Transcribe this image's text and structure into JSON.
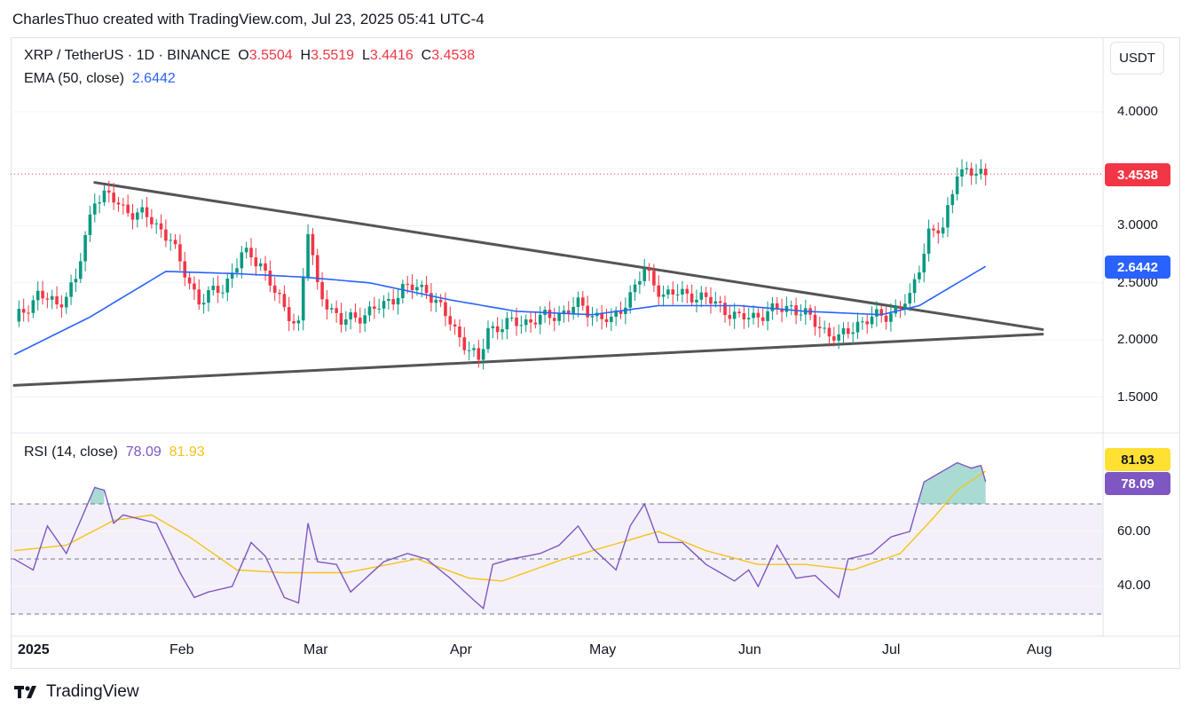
{
  "header": {
    "attribution": "CharlesThuo created with TradingView.com, Jul 23, 2025 05:41 UTC-4"
  },
  "legend": {
    "symbol": "XRP / TetherUS · 1D · BINANCE",
    "o_label": "O",
    "o_value": "3.5504",
    "h_label": "H",
    "h_value": "3.5519",
    "l_label": "L",
    "l_value": "3.4416",
    "c_label": "C",
    "c_value": "3.4538",
    "ema_label": "EMA (50, close)",
    "ema_value": "2.6442",
    "rsi_label": "RSI (14, close)",
    "rsi_value": "78.09",
    "rsi_ma_value": "81.93"
  },
  "price_axis": {
    "unit": "USDT",
    "ticks": [
      "4.0000",
      "3.0000",
      "2.5000",
      "2.0000",
      "1.5000"
    ],
    "last_price_tag": "3.4538",
    "ema_tag": "2.6442"
  },
  "rsi_axis": {
    "ticks": [
      "60.00",
      "40.00"
    ],
    "rsi_tag": "78.09",
    "rsi_ma_tag": "81.93"
  },
  "time_axis": {
    "labels": [
      "2025",
      "Feb",
      "Mar",
      "Apr",
      "May",
      "Jun",
      "Jul",
      "Aug"
    ]
  },
  "footer": {
    "brand": "TradingView"
  },
  "colors": {
    "up": "#089981",
    "down": "#f23645",
    "ema": "#2962ff",
    "rsi": "#7e57c2",
    "rsi_ma": "#f7c21b",
    "trendline": "#555555"
  },
  "chart_data": [
    {
      "type": "candlestick",
      "title": "XRP / TetherUS · 1D · BINANCE",
      "ylim": [
        1.3,
        4.4
      ],
      "x_range": [
        "2024-12-30",
        "2025-08-15"
      ],
      "anchors": [
        [
          "2024-12-30",
          2.16
        ],
        [
          "2025-01-04",
          2.4
        ],
        [
          "2025-01-08",
          2.3
        ],
        [
          "2025-01-12",
          2.52
        ],
        [
          "2025-01-16",
          3.25
        ],
        [
          "2025-01-18",
          3.28
        ],
        [
          "2025-01-22",
          3.15
        ],
        [
          "2025-01-26",
          3.1
        ],
        [
          "2025-02-01",
          2.9
        ],
        [
          "2025-02-03",
          2.65
        ],
        [
          "2025-02-07",
          2.35
        ],
        [
          "2025-02-12",
          2.45
        ],
        [
          "2025-02-16",
          2.75
        ],
        [
          "2025-02-20",
          2.68
        ],
        [
          "2025-02-25",
          2.25
        ],
        [
          "2025-02-28",
          2.15
        ],
        [
          "2025-03-02",
          2.95
        ],
        [
          "2025-03-04",
          2.45
        ],
        [
          "2025-03-09",
          2.15
        ],
        [
          "2025-03-12",
          2.2
        ],
        [
          "2025-03-18",
          2.3
        ],
        [
          "2025-03-22",
          2.45
        ],
        [
          "2025-03-27",
          2.45
        ],
        [
          "2025-04-01",
          2.15
        ],
        [
          "2025-04-07",
          1.8
        ],
        [
          "2025-04-09",
          2.1
        ],
        [
          "2025-04-15",
          2.15
        ],
        [
          "2025-04-22",
          2.2
        ],
        [
          "2025-04-28",
          2.3
        ],
        [
          "2025-05-05",
          2.15
        ],
        [
          "2025-05-09",
          2.4
        ],
        [
          "2025-05-12",
          2.6
        ],
        [
          "2025-05-16",
          2.4
        ],
        [
          "2025-05-22",
          2.4
        ],
        [
          "2025-05-28",
          2.3
        ],
        [
          "2025-06-01",
          2.18
        ],
        [
          "2025-06-08",
          2.25
        ],
        [
          "2025-06-12",
          2.3
        ],
        [
          "2025-06-17",
          2.15
        ],
        [
          "2025-06-22",
          2.0
        ],
        [
          "2025-06-26",
          2.15
        ],
        [
          "2025-07-02",
          2.22
        ],
        [
          "2025-07-07",
          2.35
        ],
        [
          "2025-07-11",
          2.95
        ],
        [
          "2025-07-14",
          2.95
        ],
        [
          "2025-07-17",
          3.5
        ],
        [
          "2025-07-20",
          3.45
        ],
        [
          "2025-07-23",
          3.4538
        ]
      ],
      "ema": {
        "name": "EMA (50, close)",
        "anchors": [
          [
            "2024-12-30",
            1.87
          ],
          [
            "2025-01-15",
            2.2
          ],
          [
            "2025-01-31",
            2.6
          ],
          [
            "2025-02-15",
            2.58
          ],
          [
            "2025-03-01",
            2.55
          ],
          [
            "2025-03-15",
            2.5
          ],
          [
            "2025-04-01",
            2.35
          ],
          [
            "2025-04-15",
            2.25
          ],
          [
            "2025-05-01",
            2.22
          ],
          [
            "2025-05-15",
            2.3
          ],
          [
            "2025-06-01",
            2.3
          ],
          [
            "2025-06-15",
            2.25
          ],
          [
            "2025-07-01",
            2.22
          ],
          [
            "2025-07-09",
            2.3
          ],
          [
            "2025-07-23",
            2.6442
          ]
        ]
      },
      "trendlines": [
        {
          "from": [
            "2025-01-16",
            3.38
          ],
          "to": [
            "2025-08-04",
            2.09
          ]
        },
        {
          "from": [
            "2024-12-30",
            1.6
          ],
          "to": [
            "2025-08-04",
            2.05
          ]
        }
      ]
    },
    {
      "type": "line",
      "title": "RSI (14, close)",
      "ylim": [
        28,
        92
      ],
      "bands": {
        "upper": 70,
        "middle": 50,
        "lower": 30
      },
      "series": [
        {
          "name": "RSI",
          "anchors": [
            [
              "2024-12-30",
              50
            ],
            [
              "2025-01-03",
              46
            ],
            [
              "2025-01-06",
              62
            ],
            [
              "2025-01-10",
              52
            ],
            [
              "2025-01-16",
              76
            ],
            [
              "2025-01-18",
              75
            ],
            [
              "2025-01-20",
              63
            ],
            [
              "2025-01-22",
              66
            ],
            [
              "2025-01-29",
              63
            ],
            [
              "2025-02-03",
              45
            ],
            [
              "2025-02-06",
              36
            ],
            [
              "2025-02-09",
              38
            ],
            [
              "2025-02-14",
              40
            ],
            [
              "2025-02-18",
              56
            ],
            [
              "2025-02-21",
              51
            ],
            [
              "2025-02-25",
              36
            ],
            [
              "2025-02-28",
              34
            ],
            [
              "2025-03-02",
              63
            ],
            [
              "2025-03-04",
              49
            ],
            [
              "2025-03-08",
              48
            ],
            [
              "2025-03-11",
              38
            ],
            [
              "2025-03-18",
              49
            ],
            [
              "2025-03-23",
              52
            ],
            [
              "2025-03-27",
              50
            ],
            [
              "2025-04-01",
              43
            ],
            [
              "2025-04-06",
              35
            ],
            [
              "2025-04-08",
              32
            ],
            [
              "2025-04-10",
              48
            ],
            [
              "2025-04-14",
              50
            ],
            [
              "2025-04-20",
              52
            ],
            [
              "2025-04-24",
              55
            ],
            [
              "2025-04-28",
              62
            ],
            [
              "2025-05-01",
              54
            ],
            [
              "2025-05-06",
              46
            ],
            [
              "2025-05-09",
              62
            ],
            [
              "2025-05-12",
              70
            ],
            [
              "2025-05-15",
              56
            ],
            [
              "2025-05-20",
              56
            ],
            [
              "2025-05-25",
              48
            ],
            [
              "2025-05-31",
              42
            ],
            [
              "2025-06-03",
              46
            ],
            [
              "2025-06-05",
              40
            ],
            [
              "2025-06-09",
              55
            ],
            [
              "2025-06-13",
              43
            ],
            [
              "2025-06-17",
              44
            ],
            [
              "2025-06-22",
              36
            ],
            [
              "2025-06-24",
              50
            ],
            [
              "2025-06-29",
              52
            ],
            [
              "2025-07-03",
              58
            ],
            [
              "2025-07-07",
              60
            ],
            [
              "2025-07-10",
              78
            ],
            [
              "2025-07-13",
              81
            ],
            [
              "2025-07-17",
              85
            ],
            [
              "2025-07-20",
              83
            ],
            [
              "2025-07-22",
              84
            ],
            [
              "2025-07-23",
              78.09
            ]
          ]
        },
        {
          "name": "RSI MA",
          "anchors": [
            [
              "2024-12-30",
              53
            ],
            [
              "2025-01-10",
              55
            ],
            [
              "2025-01-20",
              64
            ],
            [
              "2025-01-28",
              66
            ],
            [
              "2025-02-05",
              58
            ],
            [
              "2025-02-15",
              46
            ],
            [
              "2025-02-25",
              45
            ],
            [
              "2025-03-10",
              45
            ],
            [
              "2025-03-25",
              50
            ],
            [
              "2025-04-05",
              43
            ],
            [
              "2025-04-12",
              42
            ],
            [
              "2025-04-25",
              50
            ],
            [
              "2025-05-05",
              55
            ],
            [
              "2025-05-15",
              60
            ],
            [
              "2025-05-25",
              53
            ],
            [
              "2025-06-05",
              48
            ],
            [
              "2025-06-15",
              48
            ],
            [
              "2025-06-25",
              46
            ],
            [
              "2025-07-05",
              52
            ],
            [
              "2025-07-12",
              65
            ],
            [
              "2025-07-17",
              75
            ],
            [
              "2025-07-23",
              81.93
            ]
          ]
        }
      ]
    }
  ]
}
